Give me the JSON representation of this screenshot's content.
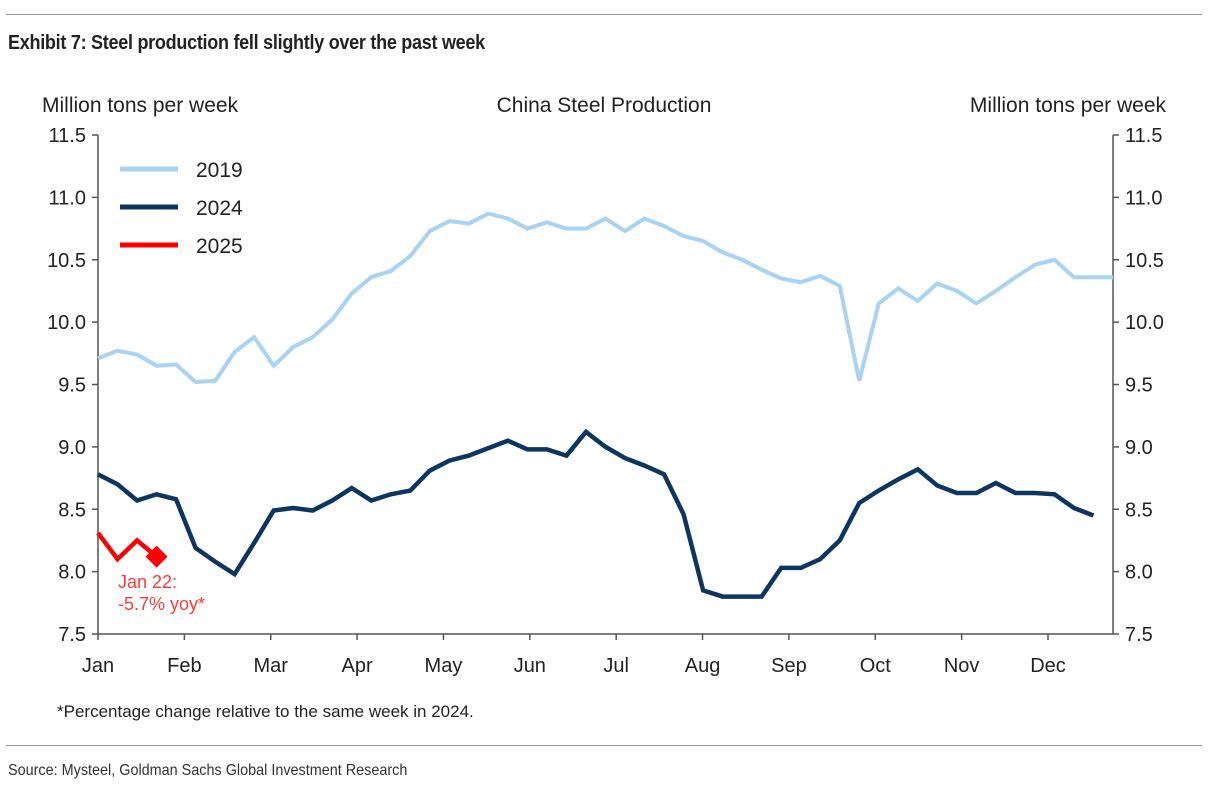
{
  "exhibit_title": "Exhibit 7: Steel production fell slightly over the past week",
  "source": "Source: Mysteel, Goldman Sachs Global Investment Research",
  "chart_data": {
    "type": "line",
    "title": "China Steel Production",
    "ylabel_left": "Million tons per week",
    "ylabel_right": "Million tons per week",
    "ylim": [
      7.5,
      11.5
    ],
    "yticks": [
      "11.5",
      "11.0",
      "10.5",
      "10.0",
      "9.5",
      "9.0",
      "8.5",
      "8.0",
      "7.5"
    ],
    "x_tick_labels": [
      "Jan",
      "Feb",
      "Mar",
      "Apr",
      "May",
      "Jun",
      "Jul",
      "Aug",
      "Sep",
      "Oct",
      "Nov",
      "Dec"
    ],
    "x_unit": "weekly",
    "legend_position": "top-left",
    "grid": false,
    "series": [
      {
        "name": "2019",
        "color": "#a9d3f2",
        "values": [
          9.71,
          9.77,
          9.74,
          9.65,
          9.66,
          9.52,
          9.53,
          9.76,
          9.88,
          9.65,
          9.8,
          9.88,
          10.02,
          10.23,
          10.36,
          10.41,
          10.53,
          10.73,
          10.81,
          10.79,
          10.87,
          10.83,
          10.75,
          10.8,
          10.75,
          10.75,
          10.83,
          10.73,
          10.83,
          10.77,
          10.69,
          10.65,
          10.56,
          10.5,
          10.42,
          10.35,
          10.32,
          10.37,
          10.29,
          9.53,
          10.15,
          10.27,
          10.17,
          10.31,
          10.25,
          10.15,
          10.25,
          10.36,
          10.46,
          10.5,
          10.36,
          10.36,
          10.36
        ]
      },
      {
        "name": "2024",
        "color": "#0c3560",
        "values": [
          8.78,
          8.7,
          8.57,
          8.62,
          8.58,
          8.19,
          8.08,
          7.98,
          8.23,
          8.49,
          8.51,
          8.49,
          8.57,
          8.67,
          8.57,
          8.62,
          8.65,
          8.81,
          8.89,
          8.93,
          8.99,
          9.05,
          8.98,
          8.98,
          8.93,
          9.12,
          9.0,
          8.91,
          8.85,
          8.78,
          8.46,
          7.85,
          7.8,
          7.8,
          7.8,
          8.03,
          8.03,
          8.1,
          8.25,
          8.55,
          8.65,
          8.74,
          8.82,
          8.69,
          8.63,
          8.63,
          8.71,
          8.63,
          8.63,
          8.62,
          8.51,
          8.45
        ]
      },
      {
        "name": "2025",
        "color": "#ff0000",
        "values": [
          8.31,
          8.1,
          8.25,
          8.12
        ]
      }
    ],
    "annotation": {
      "line1": "Jan 22:",
      "line2": "-5.7% yoy*",
      "color": "#ff3a3a"
    },
    "footnote": "*Percentage change relative to the same week in 2024."
  }
}
